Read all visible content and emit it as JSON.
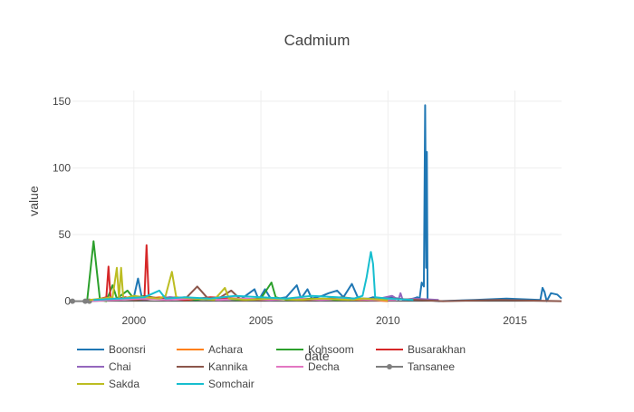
{
  "chart_data": {
    "type": "line",
    "title": "Cadmium",
    "xlabel": "date",
    "ylabel": "value",
    "xlim": [
      "1997-08-01",
      "2016-11-01"
    ],
    "ylim": [
      -5,
      158
    ],
    "x_ticks": [
      {
        "label": "2000",
        "date": "2000-01-01"
      },
      {
        "label": "2005",
        "date": "2005-01-01"
      },
      {
        "label": "2010",
        "date": "2010-01-01"
      },
      {
        "label": "2015",
        "date": "2015-01-01"
      }
    ],
    "y_ticks": [
      0,
      50,
      100,
      150
    ],
    "grid": true,
    "legend_position": "bottom",
    "series": [
      {
        "name": "Boonsri",
        "color": "#1f77b4",
        "marker": false,
        "points": [
          [
            "1998-04-01",
            0
          ],
          [
            "1999-02-01",
            1
          ],
          [
            "1999-08-01",
            2
          ],
          [
            "2000-01-01",
            3
          ],
          [
            "2000-03-01",
            17
          ],
          [
            "2000-05-01",
            1
          ],
          [
            "2001-06-01",
            3
          ],
          [
            "2002-03-01",
            2
          ],
          [
            "2003-01-01",
            1
          ],
          [
            "2003-06-01",
            2
          ],
          [
            "2004-04-01",
            2
          ],
          [
            "2004-10-01",
            9
          ],
          [
            "2004-12-01",
            1
          ],
          [
            "2005-03-01",
            9
          ],
          [
            "2005-06-01",
            1
          ],
          [
            "2005-09-01",
            2
          ],
          [
            "2006-01-01",
            3
          ],
          [
            "2006-06-01",
            12
          ],
          [
            "2006-08-01",
            2
          ],
          [
            "2006-11-01",
            9
          ],
          [
            "2007-01-01",
            2
          ],
          [
            "2007-06-01",
            4
          ],
          [
            "2007-09-01",
            6
          ],
          [
            "2008-01-01",
            8
          ],
          [
            "2008-04-01",
            3
          ],
          [
            "2008-08-01",
            13
          ],
          [
            "2008-11-01",
            2
          ],
          [
            "2009-04-01",
            2
          ],
          [
            "2009-06-01",
            3
          ],
          [
            "2009-10-01",
            2
          ],
          [
            "2010-02-01",
            3
          ],
          [
            "2010-06-01",
            2
          ],
          [
            "2010-11-01",
            1
          ],
          [
            "2011-03-01",
            3
          ],
          [
            "2011-04-01",
            2
          ],
          [
            "2011-05-01",
            14
          ],
          [
            "2011-06-01",
            11
          ],
          [
            "2011-06-20",
            147
          ],
          [
            "2011-07-05",
            25
          ],
          [
            "2011-07-15",
            112
          ],
          [
            "2011-07-25",
            1
          ],
          [
            "2012-01-01",
            0
          ],
          [
            "2013-06-01",
            1
          ],
          [
            "2014-09-01",
            2
          ],
          [
            "2016-01-01",
            1
          ],
          [
            "2016-02-01",
            10
          ],
          [
            "2016-03-01",
            7
          ],
          [
            "2016-04-01",
            0
          ],
          [
            "2016-06-01",
            6
          ],
          [
            "2016-09-01",
            5
          ],
          [
            "2016-11-01",
            2
          ]
        ]
      },
      {
        "name": "Achara",
        "color": "#ff7f0e",
        "marker": false,
        "points": [
          [
            "1998-05-01",
            1
          ],
          [
            "1999-03-01",
            2
          ],
          [
            "2000-02-01",
            1
          ],
          [
            "2001-01-01",
            3
          ],
          [
            "2002-01-01",
            1
          ],
          [
            "2003-03-01",
            2
          ],
          [
            "2004-05-01",
            1
          ],
          [
            "2005-06-01",
            2
          ],
          [
            "2006-09-01",
            1
          ],
          [
            "2007-11-01",
            2
          ],
          [
            "2008-12-01",
            1
          ],
          [
            "2009-06-01",
            1
          ],
          [
            "2010-01-01",
            0
          ]
        ]
      },
      {
        "name": "Kohsoom",
        "color": "#2ca02c",
        "marker": false,
        "points": [
          [
            "1998-01-01",
            0
          ],
          [
            "1998-03-01",
            1
          ],
          [
            "1998-06-01",
            45
          ],
          [
            "1998-09-01",
            1
          ],
          [
            "1998-12-01",
            0
          ],
          [
            "1999-03-01",
            12
          ],
          [
            "1999-05-01",
            2
          ],
          [
            "1999-10-01",
            8
          ],
          [
            "2000-01-01",
            2
          ],
          [
            "2000-06-01",
            4
          ],
          [
            "2001-01-01",
            2
          ],
          [
            "2001-09-01",
            3
          ],
          [
            "2002-06-01",
            1
          ],
          [
            "2003-03-01",
            2
          ],
          [
            "2004-01-01",
            1
          ],
          [
            "2005-01-01",
            2
          ],
          [
            "2005-06-01",
            14
          ],
          [
            "2005-08-01",
            3
          ],
          [
            "2006-01-01",
            1
          ],
          [
            "2007-01-01",
            2
          ],
          [
            "2008-01-01",
            1
          ],
          [
            "2009-01-01",
            2
          ],
          [
            "2010-01-01",
            1
          ]
        ]
      },
      {
        "name": "Busarakhan",
        "color": "#d62728",
        "marker": false,
        "points": [
          [
            "1998-07-01",
            1
          ],
          [
            "1998-12-01",
            3
          ],
          [
            "1999-01-01",
            26
          ],
          [
            "1999-02-01",
            1
          ],
          [
            "1999-09-01",
            3
          ],
          [
            "2000-01-01",
            2
          ],
          [
            "2000-06-01",
            3
          ],
          [
            "2000-07-01",
            42
          ],
          [
            "2000-08-01",
            3
          ],
          [
            "2001-03-01",
            2
          ],
          [
            "2002-01-01",
            1
          ],
          [
            "2003-01-01",
            3
          ],
          [
            "2004-01-01",
            2
          ],
          [
            "2005-01-01",
            1
          ],
          [
            "2006-01-01",
            2
          ],
          [
            "2007-01-01",
            1
          ]
        ]
      },
      {
        "name": "Chai",
        "color": "#9467bd",
        "marker": false,
        "points": [
          [
            "1998-04-01",
            1
          ],
          [
            "1999-06-01",
            2
          ],
          [
            "2000-06-01",
            1
          ],
          [
            "2001-06-01",
            3
          ],
          [
            "2002-06-01",
            2
          ],
          [
            "2003-06-01",
            1
          ],
          [
            "2004-06-01",
            2
          ],
          [
            "2005-06-01",
            1
          ],
          [
            "2006-06-01",
            2
          ],
          [
            "2007-06-01",
            1
          ],
          [
            "2008-06-01",
            2
          ],
          [
            "2009-06-01",
            1
          ],
          [
            "2010-03-01",
            4
          ],
          [
            "2010-06-01",
            1
          ],
          [
            "2010-07-01",
            6
          ],
          [
            "2010-08-01",
            1
          ],
          [
            "2011-01-01",
            2
          ],
          [
            "2012-01-01",
            1
          ]
        ]
      },
      {
        "name": "Kannika",
        "color": "#8c564b",
        "marker": false,
        "points": [
          [
            "1998-02-01",
            0
          ],
          [
            "1999-02-01",
            2
          ],
          [
            "2000-02-01",
            1
          ],
          [
            "2001-02-01",
            2
          ],
          [
            "2002-02-01",
            3
          ],
          [
            "2002-07-01",
            11
          ],
          [
            "2002-12-01",
            2
          ],
          [
            "2003-06-01",
            3
          ],
          [
            "2003-11-01",
            8
          ],
          [
            "2004-03-01",
            2
          ],
          [
            "2005-03-01",
            1
          ],
          [
            "2006-03-01",
            2
          ],
          [
            "2007-03-01",
            1
          ],
          [
            "2008-03-01",
            3
          ],
          [
            "2009-03-01",
            1
          ],
          [
            "2010-03-01",
            2
          ],
          [
            "2011-03-01",
            1
          ],
          [
            "2012-03-01",
            0
          ],
          [
            "2014-06-01",
            1
          ],
          [
            "2016-11-01",
            0
          ]
        ]
      },
      {
        "name": "Decha",
        "color": "#e377c2",
        "marker": false,
        "points": [
          [
            "1998-03-01",
            0
          ],
          [
            "1999-05-01",
            1
          ],
          [
            "2000-05-01",
            2
          ],
          [
            "2001-05-01",
            1
          ],
          [
            "2002-05-01",
            2
          ],
          [
            "2003-05-01",
            1
          ],
          [
            "2004-05-01",
            2
          ],
          [
            "2005-05-01",
            1
          ],
          [
            "2006-05-01",
            2
          ],
          [
            "2007-05-01",
            1
          ],
          [
            "2008-05-01",
            2
          ],
          [
            "2009-05-01",
            1
          ],
          [
            "2010-05-01",
            1
          ]
        ]
      },
      {
        "name": "Tansanee",
        "color": "#7f7f7f",
        "marker": true,
        "points": [
          [
            "1997-08-01",
            0
          ],
          [
            "1998-02-01",
            0
          ],
          [
            "1998-04-01",
            0
          ]
        ]
      },
      {
        "name": "Sakda",
        "color": "#bcbd22",
        "marker": false,
        "points": [
          [
            "1998-04-01",
            1
          ],
          [
            "1998-10-01",
            2
          ],
          [
            "1999-03-01",
            3
          ],
          [
            "1999-05-01",
            25
          ],
          [
            "1999-06-01",
            2
          ],
          [
            "1999-07-01",
            25
          ],
          [
            "1999-08-01",
            2
          ],
          [
            "2000-01-01",
            4
          ],
          [
            "2000-06-01",
            3
          ],
          [
            "2001-01-01",
            2
          ],
          [
            "2001-04-01",
            4
          ],
          [
            "2001-07-01",
            22
          ],
          [
            "2001-09-01",
            3
          ],
          [
            "2002-06-01",
            2
          ],
          [
            "2003-03-01",
            1
          ],
          [
            "2003-08-01",
            10
          ],
          [
            "2003-10-01",
            2
          ],
          [
            "2004-06-01",
            1
          ],
          [
            "2005-06-01",
            2
          ],
          [
            "2006-06-01",
            1
          ],
          [
            "2007-06-01",
            2
          ],
          [
            "2008-06-01",
            1
          ],
          [
            "2009-01-01",
            2
          ],
          [
            "2010-01-01",
            1
          ]
        ]
      },
      {
        "name": "Somchair",
        "color": "#17becf",
        "marker": false,
        "points": [
          [
            "1998-06-01",
            1
          ],
          [
            "1999-06-01",
            2
          ],
          [
            "2000-06-01",
            3
          ],
          [
            "2001-01-01",
            8
          ],
          [
            "2001-04-01",
            2
          ],
          [
            "2002-01-01",
            3
          ],
          [
            "2003-01-01",
            2
          ],
          [
            "2004-01-01",
            4
          ],
          [
            "2005-01-01",
            3
          ],
          [
            "2006-01-01",
            2
          ],
          [
            "2007-01-01",
            4
          ],
          [
            "2008-01-01",
            3
          ],
          [
            "2008-09-01",
            2
          ],
          [
            "2009-01-01",
            4
          ],
          [
            "2009-03-01",
            18
          ],
          [
            "2009-05-01",
            37
          ],
          [
            "2009-06-01",
            28
          ],
          [
            "2009-07-01",
            3
          ],
          [
            "2010-01-01",
            2
          ],
          [
            "2011-01-01",
            1
          ]
        ]
      }
    ]
  }
}
